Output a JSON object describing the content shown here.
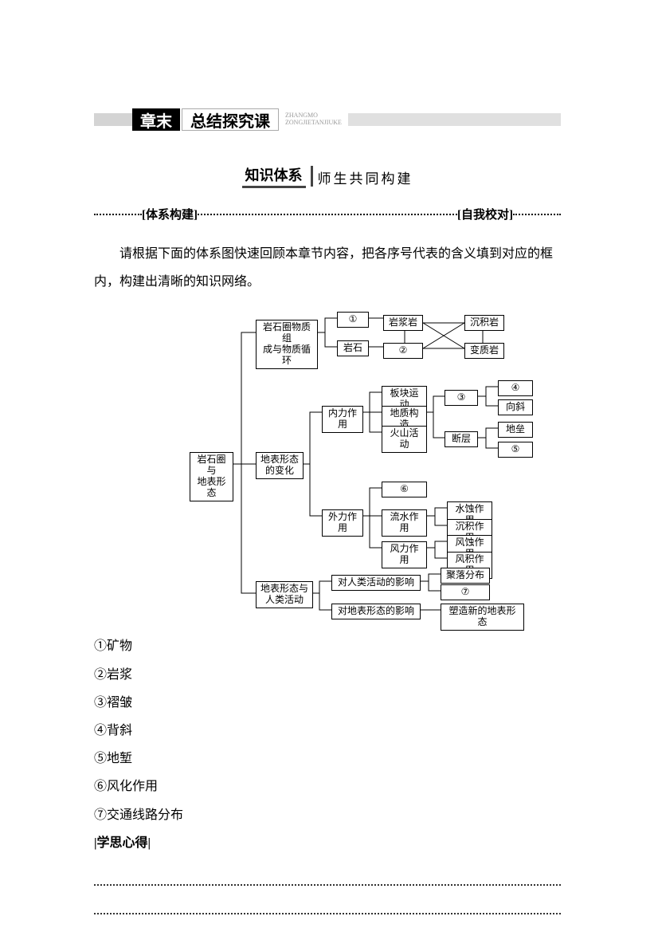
{
  "header": {
    "badge": "章末",
    "title": "总结探究课",
    "sub1": "ZHANGMO",
    "sub2": "ZONGJIETANJIUKE"
  },
  "section_title": {
    "left": "知识体系",
    "right": "师生共同构建"
  },
  "bracket": {
    "left": "[体系构建]",
    "right": "[自我校对]"
  },
  "intro": "请根据下面的体系图快速回顾本章节内容，把各序号代表的含义填到对应的框内，构建出清晰的知识网络。",
  "diagram": {
    "root": "岩石圈与\n地表形态",
    "sec1": {
      "title": "岩石圈物质组\n成与物质循环",
      "c1": "①",
      "c2": "岩石",
      "r1": "岩浆岩",
      "r2": "沉积岩",
      "r3": "②",
      "r4": "变质岩"
    },
    "sec2": {
      "title": "地表形态\n的变化",
      "inner": "内力作用",
      "outer": "外力作用",
      "i1": "板块运动",
      "i2": "地质构造",
      "i3": "火山活动",
      "ic1": "③",
      "ic2": "断层",
      "icr1": "④",
      "icr2": "向斜",
      "icr3": "地垒",
      "icr4": "⑤",
      "o1": "⑥",
      "o2": "流水作用",
      "o3": "风力作用",
      "or1": "水蚀作用",
      "or2": "沉积作用",
      "or3": "风蚀作用",
      "or4": "风积作用"
    },
    "sec3": {
      "title": "地表形态与\n人类活动",
      "b1": "对人类活动的影响",
      "b2": "对地表形态的影响",
      "c1": "聚落分布",
      "c2": "⑦",
      "c3": "塑造新的地表形态"
    }
  },
  "answers": {
    "a1": "①矿物",
    "a2": "②岩浆",
    "a3": "③褶皱",
    "a4": "④背斜",
    "a5": "⑤地堑",
    "a6": "⑥风化作用",
    "a7": "⑦交通线路分布",
    "heading": "|学思心得|"
  }
}
